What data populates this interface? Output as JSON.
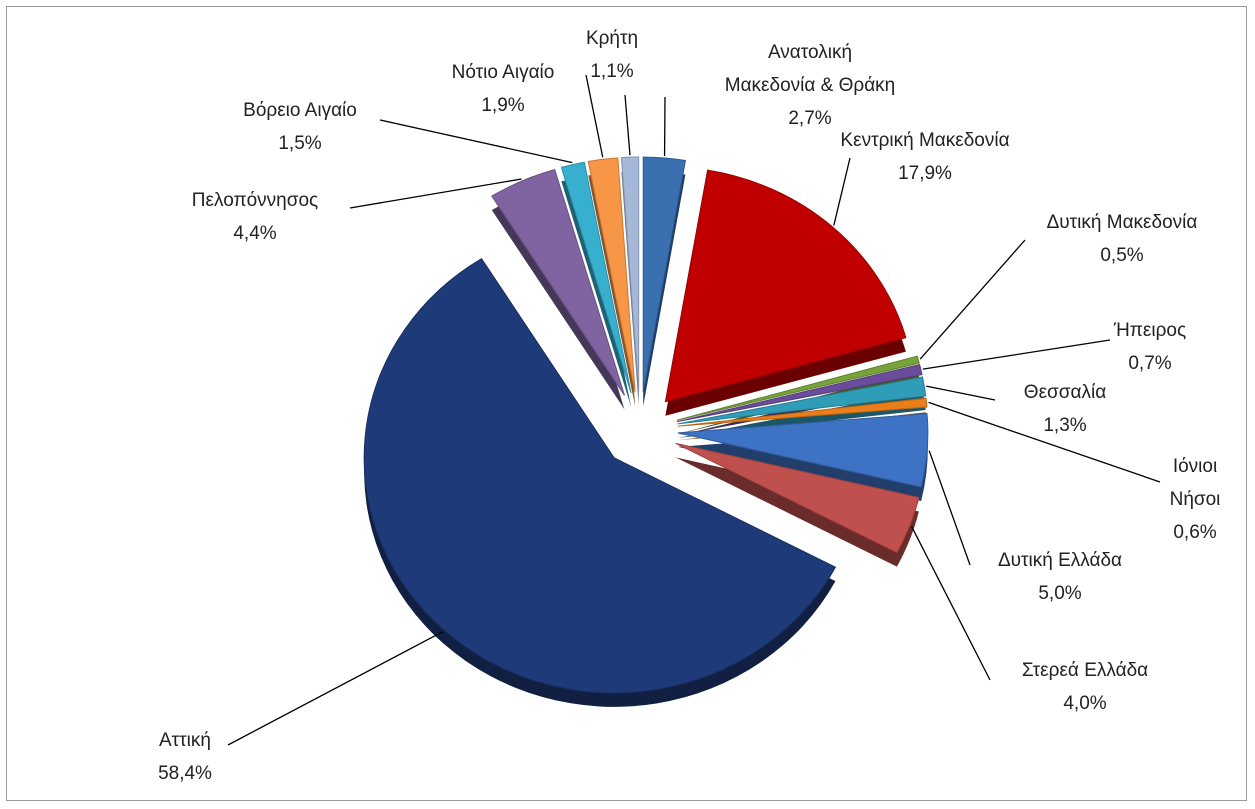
{
  "chart_data": {
    "type": "pie",
    "categories": [
      "Ανατολική\nΜακεδονία & Θράκη",
      "Κεντρική Μακεδονία",
      "Δυτική Μακεδονία",
      "Ήπειρος",
      "Θεσσαλία",
      "Ιόνιοι\nΝήσοι",
      "Δυτική Ελλάδα",
      "Στερεά Ελλάδα",
      "Αττική",
      "Πελοπόννησος",
      "Βόρειο Αιγαίο",
      "Νότιο Αιγαίο",
      "Κρήτη"
    ],
    "values": [
      2.7,
      17.9,
      0.5,
      0.7,
      1.3,
      0.6,
      5.0,
      4.0,
      58.4,
      4.4,
      1.5,
      1.9,
      1.1
    ],
    "value_labels": [
      "2,7%",
      "17,9%",
      "0,5%",
      "0,7%",
      "1,3%",
      "0,6%",
      "5,0%",
      "4,0%",
      "58,4%",
      "4,4%",
      "1,5%",
      "1,9%",
      "1,1%"
    ],
    "colors": [
      "#3a6fb0",
      "#c00000",
      "#77a33a",
      "#6b4c9a",
      "#2f9cb8",
      "#e97e1a",
      "#3d72c4",
      "#c0504d",
      "#1f3a78",
      "#8064a2",
      "#37b0cf",
      "#f79646",
      "#a5b8d8"
    ]
  }
}
